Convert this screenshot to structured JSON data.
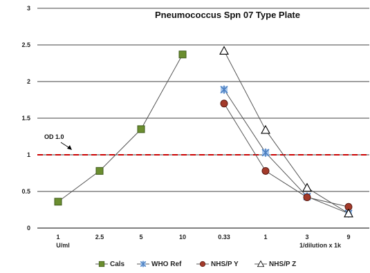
{
  "chart_data": {
    "type": "line",
    "title": "Pneumococcus Spn 07 Type Plate",
    "categories": [
      "1",
      "2.5",
      "5",
      "10",
      "0.33",
      "1",
      "3",
      "9"
    ],
    "xlabel_left": "U/ml",
    "xlabel_right": "1/dilution x 1k",
    "ylim": [
      0,
      3
    ],
    "yticks": [
      "0",
      "0.5",
      "1",
      "1.5",
      "2",
      "2.5",
      "3"
    ],
    "grid": true,
    "reference_line": {
      "label": "OD 1.0",
      "value": 1.0,
      "color": "#cc0000"
    },
    "legend_position": "bottom",
    "series": [
      {
        "name": "Cals",
        "values": [
          0.36,
          0.78,
          1.35,
          2.37,
          null,
          null,
          null,
          null
        ],
        "marker": "square",
        "color": "#6b8e2f"
      },
      {
        "name": "WHO Ref",
        "values": [
          null,
          null,
          null,
          null,
          1.89,
          1.03,
          0.43,
          0.2
        ],
        "marker": "star",
        "color": "#4a7fc1"
      },
      {
        "name": "NHS/P Y",
        "values": [
          null,
          null,
          null,
          null,
          1.7,
          0.78,
          0.42,
          0.29
        ],
        "marker": "circle",
        "color": "#a33a2a"
      },
      {
        "name": "NHS/P Z",
        "values": [
          null,
          null,
          null,
          null,
          2.42,
          1.34,
          0.55,
          0.2
        ],
        "marker": "triangle",
        "color": "#ffffff"
      }
    ]
  }
}
